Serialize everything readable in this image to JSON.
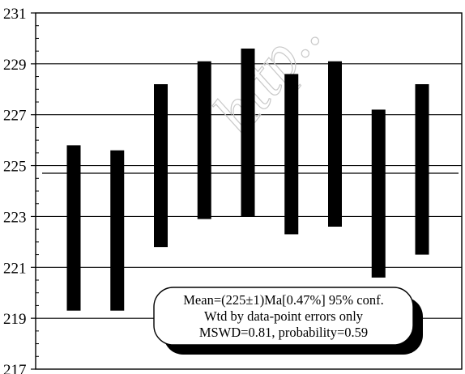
{
  "chart_data": {
    "type": "bar",
    "subtype": "error-bar range plot",
    "title": "",
    "xlabel": "",
    "ylabel": "",
    "ylim": [
      217,
      231
    ],
    "y_ticks": [
      "217",
      "219",
      "221",
      "223",
      "225",
      "227",
      "229",
      "231"
    ],
    "grid": "horizontal gridlines at labeled ticks",
    "mean_line": 224.7,
    "bars": [
      {
        "low": 219.3,
        "high": 225.8
      },
      {
        "low": 219.3,
        "high": 225.6
      },
      {
        "low": 221.8,
        "high": 228.2
      },
      {
        "low": 222.9,
        "high": 229.1
      },
      {
        "low": 223.0,
        "high": 229.6
      },
      {
        "low": 222.3,
        "high": 228.6
      },
      {
        "low": 222.6,
        "high": 229.1
      },
      {
        "low": 220.6,
        "high": 227.2
      },
      {
        "low": 221.5,
        "high": 228.2
      }
    ],
    "annotation_lines": [
      "Mean=(225±1)Ma[0.47%] 95% conf.",
      "Wtd by data-point errors only",
      "MSWD=0.81, probability=0.59"
    ],
    "watermark": "http.."
  }
}
